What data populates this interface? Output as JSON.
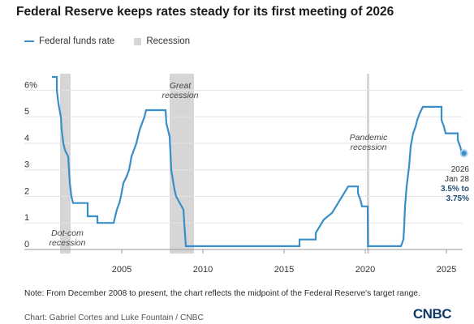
{
  "title": "Federal Reserve keeps rates steady for its first meeting of 2026",
  "legend": {
    "line_label": "Federal funds rate",
    "shade_label": "Recession"
  },
  "note": "Note: From December 2008 to present, the chart reflects the midpoint of the Federal Reserve's target range.",
  "credit": "Chart: Gabriel Cortes and Luke Fountain / CNBC",
  "logo": "CNBC",
  "colors": {
    "line": "#3a8ec8",
    "recession": "#d6d6d6",
    "latest_label": "#1f4e79"
  },
  "chart_data": {
    "type": "line",
    "xlim": [
      2000.7,
      2026.3
    ],
    "ylim": [
      0,
      6.5
    ],
    "x_ticks": [
      2005,
      2010,
      2015,
      2020,
      2025
    ],
    "y_ticks": [
      0,
      1,
      2,
      3,
      4,
      5,
      6
    ],
    "y_tick_labels": [
      "0",
      "1",
      "2",
      "3",
      "4",
      "5",
      "6%"
    ],
    "grid": "horizontal",
    "series": [
      {
        "name": "Federal funds rate",
        "points": [
          [
            2000.7,
            6.5
          ],
          [
            2001.0,
            6.5
          ],
          [
            2001.0,
            6.0
          ],
          [
            2001.1,
            5.5
          ],
          [
            2001.25,
            5.0
          ],
          [
            2001.3,
            4.5
          ],
          [
            2001.4,
            4.0
          ],
          [
            2001.5,
            3.75
          ],
          [
            2001.7,
            3.5
          ],
          [
            2001.75,
            3.0
          ],
          [
            2001.8,
            2.5
          ],
          [
            2001.9,
            2.0
          ],
          [
            2002.0,
            1.75
          ],
          [
            2002.9,
            1.75
          ],
          [
            2002.9,
            1.25
          ],
          [
            2003.5,
            1.25
          ],
          [
            2003.5,
            1.0
          ],
          [
            2004.5,
            1.0
          ],
          [
            2004.6,
            1.25
          ],
          [
            2004.7,
            1.5
          ],
          [
            2004.85,
            1.75
          ],
          [
            2004.95,
            2.0
          ],
          [
            2005.1,
            2.5
          ],
          [
            2005.3,
            2.75
          ],
          [
            2005.45,
            3.0
          ],
          [
            2005.6,
            3.5
          ],
          [
            2005.75,
            3.75
          ],
          [
            2005.9,
            4.0
          ],
          [
            2006.1,
            4.5
          ],
          [
            2006.25,
            4.75
          ],
          [
            2006.4,
            5.0
          ],
          [
            2006.5,
            5.25
          ],
          [
            2007.7,
            5.25
          ],
          [
            2007.75,
            4.75
          ],
          [
            2007.85,
            4.5
          ],
          [
            2007.95,
            4.25
          ],
          [
            2008.05,
            3.0
          ],
          [
            2008.25,
            2.25
          ],
          [
            2008.35,
            2.0
          ],
          [
            2008.8,
            1.5
          ],
          [
            2008.85,
            1.0
          ],
          [
            2008.95,
            0.125
          ],
          [
            2015.95,
            0.125
          ],
          [
            2015.95,
            0.375
          ],
          [
            2016.95,
            0.375
          ],
          [
            2016.95,
            0.625
          ],
          [
            2017.2,
            0.875
          ],
          [
            2017.45,
            1.125
          ],
          [
            2017.95,
            1.375
          ],
          [
            2018.2,
            1.625
          ],
          [
            2018.45,
            1.875
          ],
          [
            2018.7,
            2.125
          ],
          [
            2018.95,
            2.375
          ],
          [
            2019.55,
            2.375
          ],
          [
            2019.55,
            2.125
          ],
          [
            2019.7,
            1.875
          ],
          [
            2019.8,
            1.625
          ],
          [
            2020.15,
            1.625
          ],
          [
            2020.17,
            0.125
          ],
          [
            2022.2,
            0.125
          ],
          [
            2022.35,
            0.375
          ],
          [
            2022.4,
            0.875
          ],
          [
            2022.45,
            1.625
          ],
          [
            2022.55,
            2.375
          ],
          [
            2022.7,
            3.125
          ],
          [
            2022.8,
            3.875
          ],
          [
            2022.95,
            4.375
          ],
          [
            2023.1,
            4.625
          ],
          [
            2023.2,
            4.875
          ],
          [
            2023.35,
            5.125
          ],
          [
            2023.55,
            5.375
          ],
          [
            2024.7,
            5.375
          ],
          [
            2024.7,
            4.875
          ],
          [
            2024.85,
            4.625
          ],
          [
            2024.95,
            4.375
          ],
          [
            2025.7,
            4.375
          ],
          [
            2025.7,
            4.125
          ],
          [
            2025.85,
            3.875
          ],
          [
            2025.95,
            3.625
          ],
          [
            2026.08,
            3.625
          ]
        ]
      }
    ],
    "recessions": [
      [
        2001.2,
        2001.85
      ],
      [
        2007.95,
        2009.45
      ],
      [
        2020.1,
        2020.25
      ]
    ],
    "annotations": [
      {
        "id": "dotcom",
        "lines": [
          "Dot-com",
          "recession"
        ]
      },
      {
        "id": "great",
        "lines": [
          "Great",
          "recession"
        ]
      },
      {
        "id": "pandemic",
        "lines": [
          "Pandemic",
          "recession"
        ]
      }
    ],
    "latest": {
      "x": 2026.08,
      "y": 3.625,
      "lines": [
        "2026",
        "Jan 28",
        "3.5% to",
        "3.75%"
      ]
    }
  }
}
